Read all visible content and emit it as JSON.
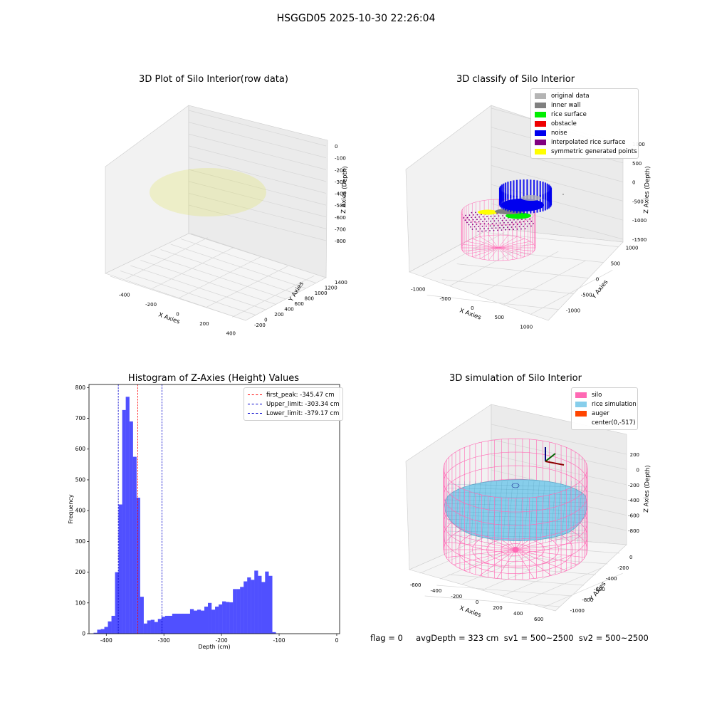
{
  "suptitle": "HSGGD05 2025-10-30 22:26:04",
  "panels": {
    "raw": {
      "title": "3D Plot of Silo Interior(row data)",
      "xlabel": "X Axies",
      "ylabel": "Y Axies",
      "zlabel": "Z Axies (Depth)",
      "xticks": [
        "-400",
        "-200",
        "0",
        "200",
        "400"
      ],
      "yticks": [
        "-200",
        "0",
        "200",
        "400",
        "600",
        "800",
        "1000",
        "1200",
        "1400"
      ],
      "zticks": [
        "0",
        "-100",
        "-200",
        "-300",
        "-400",
        "-500",
        "-600",
        "-700",
        "-800"
      ]
    },
    "classify": {
      "title": "3D classify of Silo Interior",
      "xlabel": "X Axies",
      "ylabel": "Y Axies",
      "zlabel": "Z Axies (Depth)",
      "xticks": [
        "-1000",
        "-500",
        "0",
        "500",
        "1000"
      ],
      "yticks": [
        "-1000",
        "-500",
        "0",
        "500",
        "1000"
      ],
      "zticks": [
        "1000",
        "500",
        "0",
        "-500",
        "-1000",
        "-1500"
      ],
      "legend": [
        {
          "label": "original data",
          "color": "#b4b4b4"
        },
        {
          "label": "inner wall",
          "color": "#808080"
        },
        {
          "label": "rice surface",
          "color": "#00ee00"
        },
        {
          "label": "obstacle",
          "color": "#ee0000"
        },
        {
          "label": "noise",
          "color": "#0000ee"
        },
        {
          "label": "interpolated rice surface",
          "color": "#800080"
        },
        {
          "label": "symmetric generated points",
          "color": "#ffff00"
        }
      ]
    },
    "simulation": {
      "title": "3D simulation of Silo Interior",
      "xlabel": "X Axies",
      "ylabel": "Y Axies",
      "zlabel": "Z Axies (Depth)",
      "xticks": [
        "-600",
        "-400",
        "-200",
        "0",
        "200",
        "400",
        "600"
      ],
      "yticks": [
        "-1000",
        "-800",
        "-600",
        "-400",
        "-200",
        "0"
      ],
      "zticks": [
        "200",
        "0",
        "-200",
        "-400",
        "-600",
        "-800"
      ],
      "legend": [
        {
          "label": "silo",
          "color": "#ff69b4"
        },
        {
          "label": "rice simulation",
          "color": "#87ceeb"
        },
        {
          "label": "auger",
          "color": "#ff4500"
        },
        {
          "label": "center(0,-517)",
          "color": ""
        }
      ]
    }
  },
  "chart_data": {
    "type": "bar",
    "title": "Histogram of Z-Axies (Height) Values",
    "xlabel": "Depth (cm)",
    "ylabel": "Frequency",
    "xlim": [
      -430,
      5
    ],
    "ylim": [
      0,
      810
    ],
    "xticks": [
      -400,
      -300,
      -200,
      -100,
      0
    ],
    "yticks": [
      0,
      100,
      200,
      300,
      400,
      500,
      600,
      700,
      800
    ],
    "bar_color": "#5050ff",
    "bin_width": 6.2,
    "bins_start": -422,
    "values": [
      3,
      13,
      15,
      22,
      40,
      58,
      200,
      420,
      727,
      770,
      690,
      575,
      442,
      120,
      33,
      43,
      45,
      38,
      48,
      55,
      58,
      58,
      65,
      65,
      65,
      65,
      65,
      80,
      75,
      78,
      75,
      88,
      100,
      78,
      88,
      95,
      105,
      103,
      102,
      145,
      145,
      152,
      170,
      183,
      175,
      205,
      188,
      168,
      202,
      188,
      5
    ],
    "vlines": [
      {
        "label": "first_peak: -345.47 cm",
        "value": -345.47,
        "color": "#ff0000"
      },
      {
        "label": "Upper_limit: -303.34 cm",
        "value": -303.34,
        "color": "#0000cc"
      },
      {
        "label": "Lower_limit: -379.17 cm",
        "value": -379.17,
        "color": "#0000cc"
      }
    ],
    "legend_position": "top-right"
  },
  "footer": "flag = 0     avgDepth = 323 cm  sv1 = 500~2500  sv2 = 500~2500"
}
